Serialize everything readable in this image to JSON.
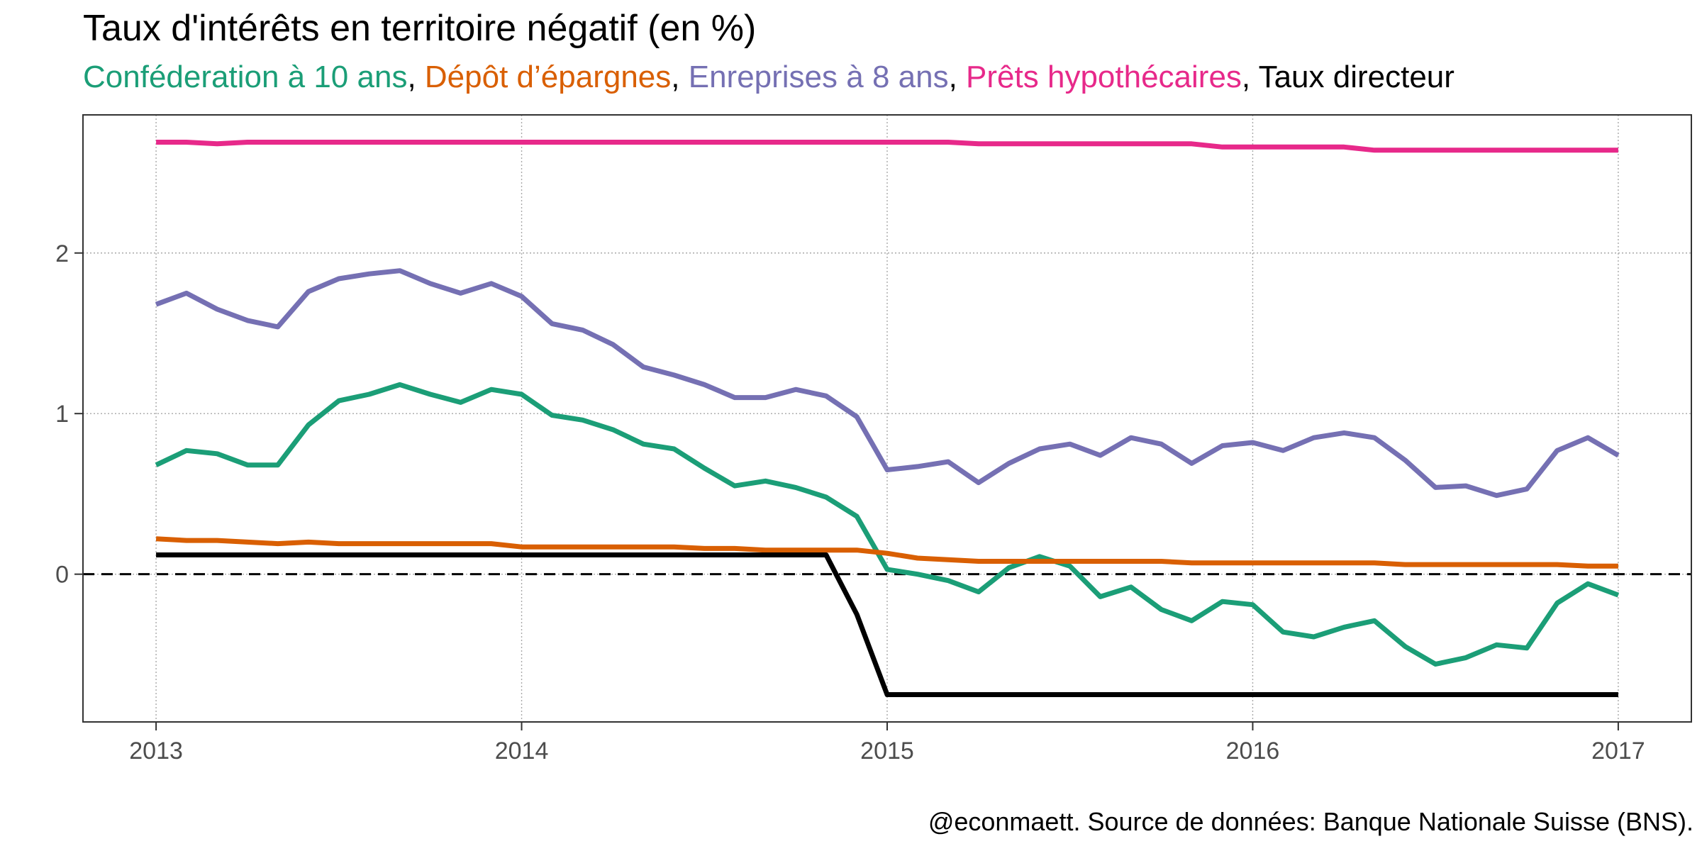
{
  "title": "Taux d'intérêts en territoire négatif (en %)",
  "subtitle_separator": ", ",
  "caption": "@econmaett. Source de données: Banque Nationale Suisse (BNS).",
  "chart_data": {
    "type": "line",
    "title": "Taux d'intérêts en territoire négatif (en %)",
    "xlabel": "",
    "ylabel": "",
    "xlim": [
      2012.8,
      2017.2
    ],
    "ylim": [
      -0.92,
      2.86
    ],
    "x_ticks": [
      2013,
      2014,
      2015,
      2016,
      2017
    ],
    "x_tick_labels": [
      "2013",
      "2014",
      "2015",
      "2016",
      "2017"
    ],
    "y_ticks": [
      0,
      1,
      2
    ],
    "y_tick_labels": [
      "0",
      "1",
      "2"
    ],
    "grid": true,
    "legend": "subtitle",
    "reference_line": {
      "y": 0,
      "style": "dashed"
    },
    "x": [
      2013.0,
      2013.083,
      2013.167,
      2013.25,
      2013.333,
      2013.417,
      2013.5,
      2013.583,
      2013.667,
      2013.75,
      2013.833,
      2013.917,
      2014.0,
      2014.083,
      2014.167,
      2014.25,
      2014.333,
      2014.417,
      2014.5,
      2014.583,
      2014.667,
      2014.75,
      2014.833,
      2014.917,
      2015.0,
      2015.083,
      2015.167,
      2015.25,
      2015.333,
      2015.417,
      2015.5,
      2015.583,
      2015.667,
      2015.75,
      2015.833,
      2015.917,
      2016.0,
      2016.083,
      2016.167,
      2016.25,
      2016.333,
      2016.417,
      2016.5,
      2016.583,
      2016.667,
      2016.75,
      2016.833,
      2016.917,
      2017.0
    ],
    "series": [
      {
        "name": "Conféderation à 10 ans",
        "color": "#1b9e77",
        "values": [
          0.68,
          0.77,
          0.75,
          0.68,
          0.68,
          0.93,
          1.08,
          1.12,
          1.18,
          1.12,
          1.07,
          1.15,
          1.12,
          0.99,
          0.96,
          0.9,
          0.81,
          0.78,
          0.66,
          0.55,
          0.58,
          0.54,
          0.48,
          0.36,
          0.03,
          0.0,
          -0.04,
          -0.11,
          0.04,
          0.11,
          0.05,
          -0.14,
          -0.08,
          -0.22,
          -0.29,
          -0.17,
          -0.19,
          -0.36,
          -0.39,
          -0.33,
          -0.29,
          -0.45,
          -0.56,
          -0.52,
          -0.44,
          -0.46,
          -0.18,
          -0.06,
          -0.13
        ]
      },
      {
        "name": "Dépôt d’épargnes",
        "color": "#d95f02",
        "values": [
          0.22,
          0.21,
          0.21,
          0.2,
          0.19,
          0.2,
          0.19,
          0.19,
          0.19,
          0.19,
          0.19,
          0.19,
          0.17,
          0.17,
          0.17,
          0.17,
          0.17,
          0.17,
          0.16,
          0.16,
          0.15,
          0.15,
          0.15,
          0.15,
          0.13,
          0.1,
          0.09,
          0.08,
          0.08,
          0.08,
          0.08,
          0.08,
          0.08,
          0.08,
          0.07,
          0.07,
          0.07,
          0.07,
          0.07,
          0.07,
          0.07,
          0.06,
          0.06,
          0.06,
          0.06,
          0.06,
          0.06,
          0.05,
          0.05
        ]
      },
      {
        "name": "Enreprises à 8 ans",
        "color": "#7570b3",
        "values": [
          1.68,
          1.75,
          1.65,
          1.58,
          1.54,
          1.76,
          1.84,
          1.87,
          1.89,
          1.81,
          1.75,
          1.81,
          1.73,
          1.56,
          1.52,
          1.43,
          1.29,
          1.24,
          1.18,
          1.1,
          1.1,
          1.15,
          1.11,
          0.98,
          0.65,
          0.67,
          0.7,
          0.57,
          0.69,
          0.78,
          0.81,
          0.74,
          0.85,
          0.81,
          0.69,
          0.8,
          0.82,
          0.77,
          0.85,
          0.88,
          0.85,
          0.71,
          0.54,
          0.55,
          0.49,
          0.53,
          0.77,
          0.85,
          0.74
        ]
      },
      {
        "name": "Prêts hypothécaires",
        "color": "#e7298a",
        "values": [
          2.69,
          2.69,
          2.68,
          2.69,
          2.69,
          2.69,
          2.69,
          2.69,
          2.69,
          2.69,
          2.69,
          2.69,
          2.69,
          2.69,
          2.69,
          2.69,
          2.69,
          2.69,
          2.69,
          2.69,
          2.69,
          2.69,
          2.69,
          2.69,
          2.69,
          2.69,
          2.69,
          2.68,
          2.68,
          2.68,
          2.68,
          2.68,
          2.68,
          2.68,
          2.68,
          2.66,
          2.66,
          2.66,
          2.66,
          2.66,
          2.64,
          2.64,
          2.64,
          2.64,
          2.64,
          2.64,
          2.64,
          2.64,
          2.64
        ]
      },
      {
        "name": "Taux directeur",
        "color": "#000000",
        "values": [
          0.12,
          0.12,
          0.12,
          0.12,
          0.12,
          0.12,
          0.12,
          0.12,
          0.12,
          0.12,
          0.12,
          0.12,
          0.12,
          0.12,
          0.12,
          0.12,
          0.12,
          0.12,
          0.12,
          0.12,
          0.12,
          0.12,
          0.12,
          -0.25,
          -0.75,
          -0.75,
          -0.75,
          -0.75,
          -0.75,
          -0.75,
          -0.75,
          -0.75,
          -0.75,
          -0.75,
          -0.75,
          -0.75,
          -0.75,
          -0.75,
          -0.75,
          -0.75,
          -0.75,
          -0.75,
          -0.75,
          -0.75,
          -0.75,
          -0.75,
          -0.75,
          -0.75,
          -0.75
        ]
      }
    ]
  }
}
